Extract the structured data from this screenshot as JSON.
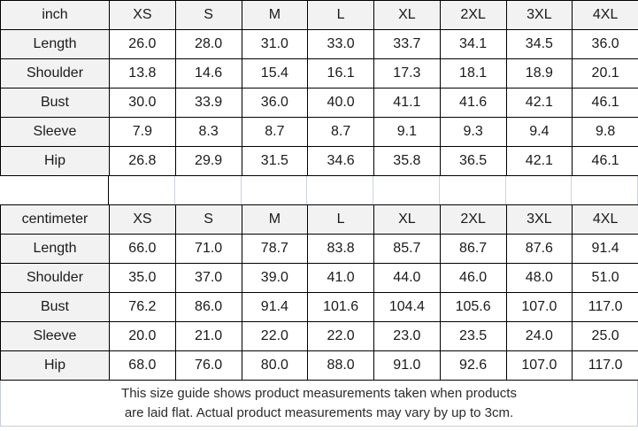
{
  "colors": {
    "header_fill": "#f2f2f2",
    "border_dark": "#000000",
    "gridline_light": "#c7cddb",
    "text": "#1a1a1a"
  },
  "chart_data": [
    {
      "type": "table",
      "unit": "inch",
      "header": [
        "inch",
        "XS",
        "S",
        "M",
        "L",
        "XL",
        "2XL",
        "3XL",
        "4XL"
      ],
      "rows": [
        {
          "label": "Length",
          "values": [
            "26.0",
            "28.0",
            "31.0",
            "33.0",
            "33.7",
            "34.1",
            "34.5",
            "36.0"
          ]
        },
        {
          "label": "Shoulder",
          "values": [
            "13.8",
            "14.6",
            "15.4",
            "16.1",
            "17.3",
            "18.1",
            "18.9",
            "20.1"
          ]
        },
        {
          "label": "Bust",
          "values": [
            "30.0",
            "33.9",
            "36.0",
            "40.0",
            "41.1",
            "41.6",
            "42.1",
            "46.1"
          ]
        },
        {
          "label": "Sleeve",
          "values": [
            "7.9",
            "8.3",
            "8.7",
            "8.7",
            "9.1",
            "9.3",
            "9.4",
            "9.8"
          ]
        },
        {
          "label": "Hip",
          "values": [
            "26.8",
            "29.9",
            "31.5",
            "34.6",
            "35.8",
            "36.5",
            "42.1",
            "46.1"
          ]
        }
      ]
    },
    {
      "type": "table",
      "unit": "centimeter",
      "header": [
        "centimeter",
        "XS",
        "S",
        "M",
        "L",
        "XL",
        "2XL",
        "3XL",
        "4XL"
      ],
      "rows": [
        {
          "label": "Length",
          "values": [
            "66.0",
            "71.0",
            "78.7",
            "83.8",
            "85.7",
            "86.7",
            "87.6",
            "91.4"
          ]
        },
        {
          "label": "Shoulder",
          "values": [
            "35.0",
            "37.0",
            "39.0",
            "41.0",
            "44.0",
            "46.0",
            "48.0",
            "51.0"
          ]
        },
        {
          "label": "Bust",
          "values": [
            "76.2",
            "86.0",
            "91.4",
            "101.6",
            "104.4",
            "105.6",
            "107.0",
            "117.0"
          ]
        },
        {
          "label": "Sleeve",
          "values": [
            "20.0",
            "21.0",
            "22.0",
            "22.0",
            "23.0",
            "23.5",
            "24.0",
            "25.0"
          ]
        },
        {
          "label": "Hip",
          "values": [
            "68.0",
            "76.0",
            "80.0",
            "88.0",
            "91.0",
            "92.6",
            "107.0",
            "117.0"
          ]
        }
      ]
    }
  ],
  "footer": {
    "line1": "This size guide shows product measurements taken when products",
    "line2": "are laid flat. Actual product measurements may vary by up to 3cm."
  }
}
